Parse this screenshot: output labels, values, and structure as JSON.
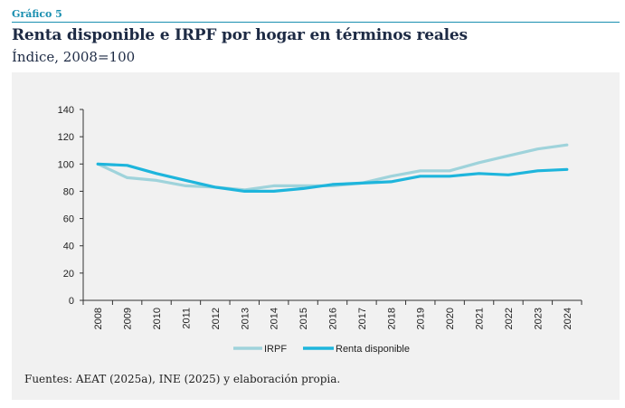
{
  "header": {
    "label": "Gráfico 5",
    "title": "Renta disponible e IRPF por hogar en términos reales",
    "subtitle": "Índice, 2008=100"
  },
  "source": "Fuentes: AEAT (2025a), INE (2025) y elaboración propia.",
  "colors": {
    "irpf": "#9fd3db",
    "renta": "#1eb5dc",
    "accent": "#1a8fb0",
    "title": "#1d2a44",
    "panel": "#f1f1f1"
  },
  "chart_data": {
    "type": "line",
    "categories": [
      "2008",
      "2009",
      "2010",
      "2011",
      "2012",
      "2013",
      "2014",
      "2015",
      "2016",
      "2017",
      "2018",
      "2019",
      "2020",
      "2021",
      "2022",
      "2023",
      "2024"
    ],
    "series": [
      {
        "name": "IRPF",
        "values": [
          100,
          90,
          88,
          84,
          83,
          81,
          84,
          84,
          84,
          86,
          91,
          95,
          95,
          101,
          106,
          111,
          114
        ]
      },
      {
        "name": "Renta disponible",
        "values": [
          100,
          99,
          93,
          88,
          83,
          80,
          80,
          82,
          85,
          86,
          87,
          91,
          91,
          93,
          92,
          95,
          96
        ]
      }
    ],
    "yticks": [
      0,
      20,
      40,
      60,
      80,
      100,
      120,
      140
    ],
    "ylim": [
      0,
      140
    ],
    "grid": false,
    "legend": "bottom"
  }
}
